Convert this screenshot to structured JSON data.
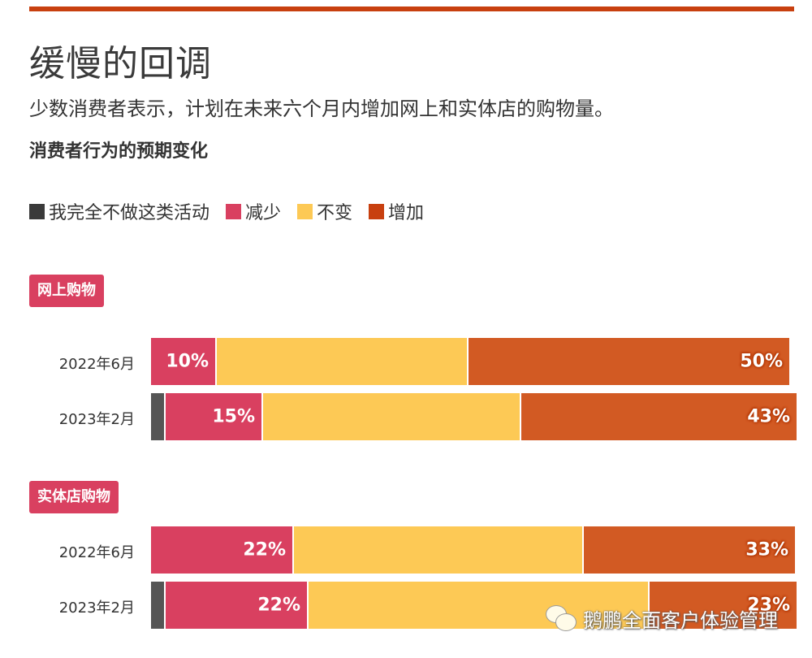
{
  "header": {
    "title": "缓慢的回调",
    "subtitle": "少数消费者表示，计划在未来六个月内增加网上和实体店的购物量。",
    "chart_title": "消费者行为的预期变化"
  },
  "colors": {
    "top_bar": "#c8400f",
    "none": "#555555",
    "decrease": "#d94060",
    "same": "#fdc955",
    "increase": "#d25a23",
    "badge": "#d94060"
  },
  "legend": [
    {
      "label": "我完全不做这类活动",
      "color": "#3a3a3a"
    },
    {
      "label": "减少",
      "color": "#d94060"
    },
    {
      "label": "不变",
      "color": "#fdc955"
    },
    {
      "label": "增加",
      "color": "#c8400f"
    }
  ],
  "sections": [
    {
      "badge": "网上购物",
      "rows": [
        {
          "label": "2022年6月",
          "segments": [
            {
              "key": "none",
              "value": 0,
              "label": ""
            },
            {
              "key": "decrease",
              "value": 10,
              "label": "10%"
            },
            {
              "key": "same",
              "value": 39,
              "label": ""
            },
            {
              "key": "increase",
              "value": 50,
              "label": "50%"
            }
          ]
        },
        {
          "label": "2023年2月",
          "segments": [
            {
              "key": "none",
              "value": 2,
              "label": ""
            },
            {
              "key": "decrease",
              "value": 15,
              "label": "15%"
            },
            {
              "key": "same",
              "value": 40,
              "label": ""
            },
            {
              "key": "increase",
              "value": 43,
              "label": "43%"
            }
          ]
        }
      ]
    },
    {
      "badge": "实体店购物",
      "rows": [
        {
          "label": "2022年6月",
          "segments": [
            {
              "key": "none",
              "value": 0,
              "label": ""
            },
            {
              "key": "decrease",
              "value": 22,
              "label": "22%"
            },
            {
              "key": "same",
              "value": 45,
              "label": ""
            },
            {
              "key": "increase",
              "value": 33,
              "label": "33%"
            }
          ]
        },
        {
          "label": "2023年2月",
          "segments": [
            {
              "key": "none",
              "value": 2,
              "label": ""
            },
            {
              "key": "decrease",
              "value": 22,
              "label": "22%"
            },
            {
              "key": "same",
              "value": 53,
              "label": ""
            },
            {
              "key": "increase",
              "value": 23,
              "label": "23%"
            }
          ]
        }
      ]
    }
  ],
  "watermark": {
    "text": "鹅鹏全面客户体验管理",
    "icon": "wechat-icon"
  },
  "chart_data": {
    "type": "bar",
    "orientation": "horizontal",
    "stacked": true,
    "title": "消费者行为的预期变化",
    "subtitle": "少数消费者表示，计划在未来六个月内增加网上和实体店的购物量。",
    "legend": [
      "我完全不做这类活动",
      "减少",
      "不变",
      "增加"
    ],
    "legend_position": "top",
    "groups": [
      "网上购物",
      "实体店购物"
    ],
    "categories": [
      "网上购物 2022年6月",
      "网上购物 2023年2月",
      "实体店购物 2022年6月",
      "实体店购物 2023年2月"
    ],
    "series": [
      {
        "name": "我完全不做这类活动",
        "values": [
          0,
          2,
          0,
          2
        ]
      },
      {
        "name": "减少",
        "values": [
          10,
          15,
          22,
          22
        ]
      },
      {
        "name": "不变",
        "values": [
          39,
          40,
          45,
          53
        ]
      },
      {
        "name": "增加",
        "values": [
          50,
          43,
          33,
          23
        ]
      }
    ],
    "labeled_values": {
      "减少": [
        "10%",
        "15%",
        "22%",
        "22%"
      ],
      "增加": [
        "50%",
        "43%",
        "33%",
        "23%"
      ]
    },
    "xlim": [
      0,
      100
    ],
    "grid": false,
    "unit": "%"
  }
}
